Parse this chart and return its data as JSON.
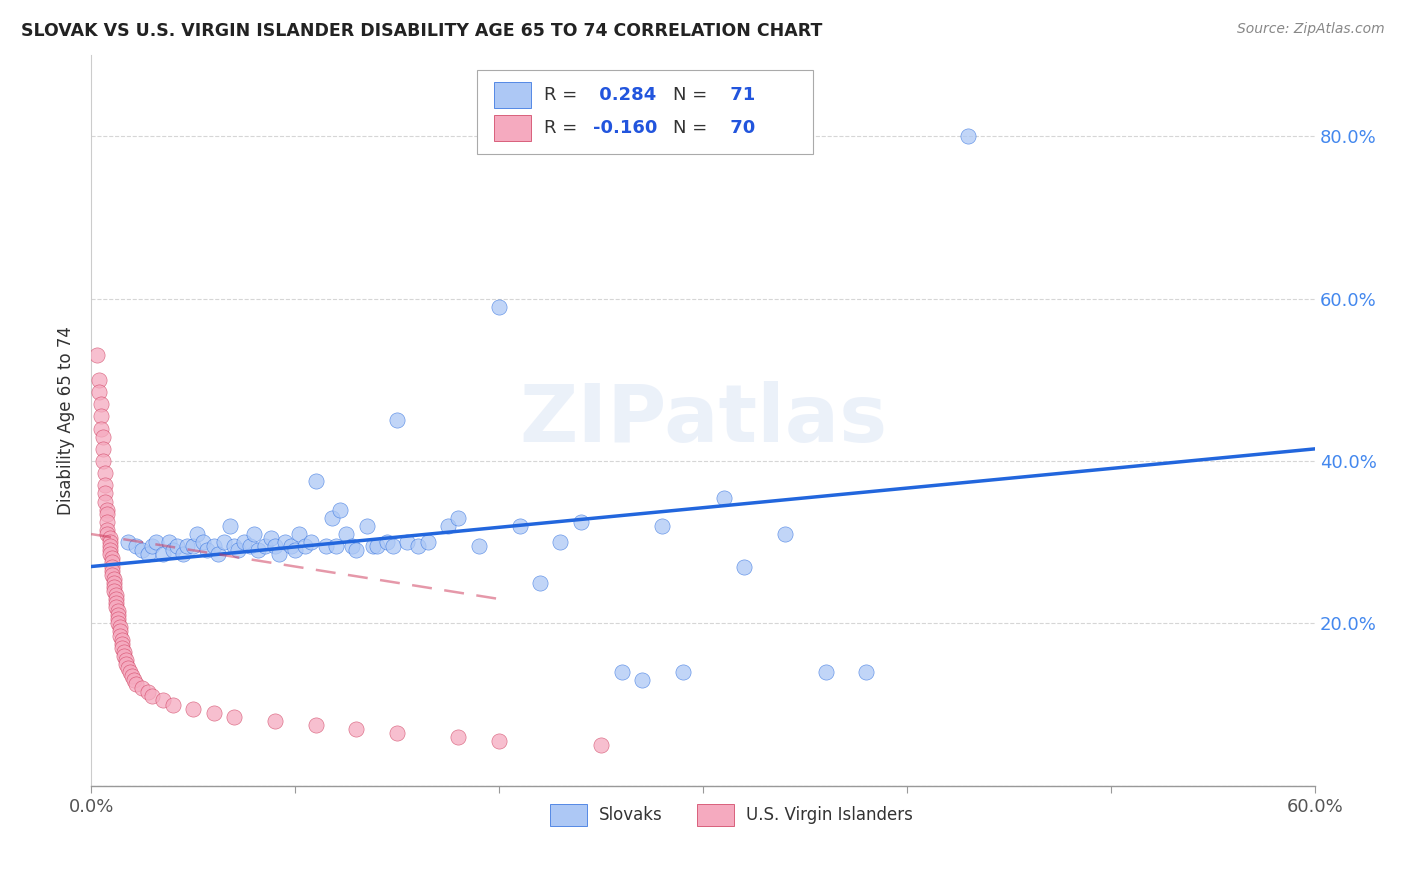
{
  "title": "SLOVAK VS U.S. VIRGIN ISLANDER DISABILITY AGE 65 TO 74 CORRELATION CHART",
  "source": "Source: ZipAtlas.com",
  "ylabel": "Disability Age 65 to 74",
  "xlim": [
    0.0,
    0.6
  ],
  "ylim": [
    0.0,
    0.9
  ],
  "xticks": [
    0.0,
    0.1,
    0.2,
    0.3,
    0.4,
    0.5,
    0.6
  ],
  "yticks": [
    0.0,
    0.2,
    0.4,
    0.6,
    0.8
  ],
  "ytick_labels": [
    "",
    "20.0%",
    "40.0%",
    "60.0%",
    "80.0%"
  ],
  "xtick_labels": [
    "0.0%",
    "",
    "",
    "",
    "",
    "",
    "60.0%"
  ],
  "watermark": "ZIPatlas",
  "legend_slovak_R": "0.284",
  "legend_slovak_N": "71",
  "legend_vi_R": "-0.160",
  "legend_vi_N": "70",
  "slovak_color": "#adc8f5",
  "vi_color": "#f5aabf",
  "trend_slovak_color": "#2266dd",
  "trend_vi_color": "#cc3355",
  "background_color": "#ffffff",
  "slovak_points": [
    [
      0.018,
      0.3
    ],
    [
      0.022,
      0.295
    ],
    [
      0.025,
      0.29
    ],
    [
      0.028,
      0.285
    ],
    [
      0.03,
      0.295
    ],
    [
      0.032,
      0.3
    ],
    [
      0.035,
      0.285
    ],
    [
      0.038,
      0.3
    ],
    [
      0.04,
      0.29
    ],
    [
      0.042,
      0.295
    ],
    [
      0.045,
      0.285
    ],
    [
      0.047,
      0.295
    ],
    [
      0.05,
      0.295
    ],
    [
      0.052,
      0.31
    ],
    [
      0.055,
      0.3
    ],
    [
      0.057,
      0.29
    ],
    [
      0.06,
      0.295
    ],
    [
      0.062,
      0.285
    ],
    [
      0.065,
      0.3
    ],
    [
      0.068,
      0.32
    ],
    [
      0.07,
      0.295
    ],
    [
      0.072,
      0.29
    ],
    [
      0.075,
      0.3
    ],
    [
      0.078,
      0.295
    ],
    [
      0.08,
      0.31
    ],
    [
      0.082,
      0.29
    ],
    [
      0.085,
      0.295
    ],
    [
      0.088,
      0.305
    ],
    [
      0.09,
      0.295
    ],
    [
      0.092,
      0.285
    ],
    [
      0.095,
      0.3
    ],
    [
      0.098,
      0.295
    ],
    [
      0.1,
      0.29
    ],
    [
      0.102,
      0.31
    ],
    [
      0.105,
      0.295
    ],
    [
      0.108,
      0.3
    ],
    [
      0.11,
      0.375
    ],
    [
      0.115,
      0.295
    ],
    [
      0.118,
      0.33
    ],
    [
      0.12,
      0.295
    ],
    [
      0.122,
      0.34
    ],
    [
      0.125,
      0.31
    ],
    [
      0.128,
      0.295
    ],
    [
      0.13,
      0.29
    ],
    [
      0.135,
      0.32
    ],
    [
      0.138,
      0.295
    ],
    [
      0.14,
      0.295
    ],
    [
      0.145,
      0.3
    ],
    [
      0.148,
      0.295
    ],
    [
      0.15,
      0.45
    ],
    [
      0.155,
      0.3
    ],
    [
      0.16,
      0.295
    ],
    [
      0.165,
      0.3
    ],
    [
      0.175,
      0.32
    ],
    [
      0.18,
      0.33
    ],
    [
      0.19,
      0.295
    ],
    [
      0.2,
      0.59
    ],
    [
      0.21,
      0.32
    ],
    [
      0.22,
      0.25
    ],
    [
      0.23,
      0.3
    ],
    [
      0.24,
      0.325
    ],
    [
      0.26,
      0.14
    ],
    [
      0.27,
      0.13
    ],
    [
      0.28,
      0.32
    ],
    [
      0.29,
      0.14
    ],
    [
      0.31,
      0.355
    ],
    [
      0.32,
      0.27
    ],
    [
      0.34,
      0.31
    ],
    [
      0.36,
      0.14
    ],
    [
      0.38,
      0.14
    ],
    [
      0.43,
      0.8
    ]
  ],
  "vi_points": [
    [
      0.003,
      0.53
    ],
    [
      0.004,
      0.5
    ],
    [
      0.004,
      0.485
    ],
    [
      0.005,
      0.47
    ],
    [
      0.005,
      0.455
    ],
    [
      0.005,
      0.44
    ],
    [
      0.006,
      0.43
    ],
    [
      0.006,
      0.415
    ],
    [
      0.006,
      0.4
    ],
    [
      0.007,
      0.385
    ],
    [
      0.007,
      0.37
    ],
    [
      0.007,
      0.36
    ],
    [
      0.007,
      0.35
    ],
    [
      0.008,
      0.34
    ],
    [
      0.008,
      0.335
    ],
    [
      0.008,
      0.325
    ],
    [
      0.008,
      0.315
    ],
    [
      0.008,
      0.31
    ],
    [
      0.009,
      0.305
    ],
    [
      0.009,
      0.3
    ],
    [
      0.009,
      0.295
    ],
    [
      0.009,
      0.29
    ],
    [
      0.009,
      0.285
    ],
    [
      0.01,
      0.28
    ],
    [
      0.01,
      0.275
    ],
    [
      0.01,
      0.27
    ],
    [
      0.01,
      0.265
    ],
    [
      0.01,
      0.26
    ],
    [
      0.011,
      0.255
    ],
    [
      0.011,
      0.25
    ],
    [
      0.011,
      0.245
    ],
    [
      0.011,
      0.24
    ],
    [
      0.012,
      0.235
    ],
    [
      0.012,
      0.23
    ],
    [
      0.012,
      0.225
    ],
    [
      0.012,
      0.22
    ],
    [
      0.013,
      0.215
    ],
    [
      0.013,
      0.21
    ],
    [
      0.013,
      0.205
    ],
    [
      0.013,
      0.2
    ],
    [
      0.014,
      0.195
    ],
    [
      0.014,
      0.19
    ],
    [
      0.014,
      0.185
    ],
    [
      0.015,
      0.18
    ],
    [
      0.015,
      0.175
    ],
    [
      0.015,
      0.17
    ],
    [
      0.016,
      0.165
    ],
    [
      0.016,
      0.16
    ],
    [
      0.017,
      0.155
    ],
    [
      0.017,
      0.15
    ],
    [
      0.018,
      0.145
    ],
    [
      0.019,
      0.14
    ],
    [
      0.02,
      0.135
    ],
    [
      0.021,
      0.13
    ],
    [
      0.022,
      0.125
    ],
    [
      0.025,
      0.12
    ],
    [
      0.028,
      0.115
    ],
    [
      0.03,
      0.11
    ],
    [
      0.035,
      0.105
    ],
    [
      0.04,
      0.1
    ],
    [
      0.05,
      0.095
    ],
    [
      0.06,
      0.09
    ],
    [
      0.07,
      0.085
    ],
    [
      0.09,
      0.08
    ],
    [
      0.11,
      0.075
    ],
    [
      0.13,
      0.07
    ],
    [
      0.15,
      0.065
    ],
    [
      0.18,
      0.06
    ],
    [
      0.2,
      0.055
    ],
    [
      0.25,
      0.05
    ]
  ],
  "slovak_trend_x": [
    0.0,
    0.6
  ],
  "slovak_trend_y": [
    0.27,
    0.415
  ],
  "vi_trend_x": [
    0.0,
    0.2
  ],
  "vi_trend_y": [
    0.31,
    0.23
  ]
}
